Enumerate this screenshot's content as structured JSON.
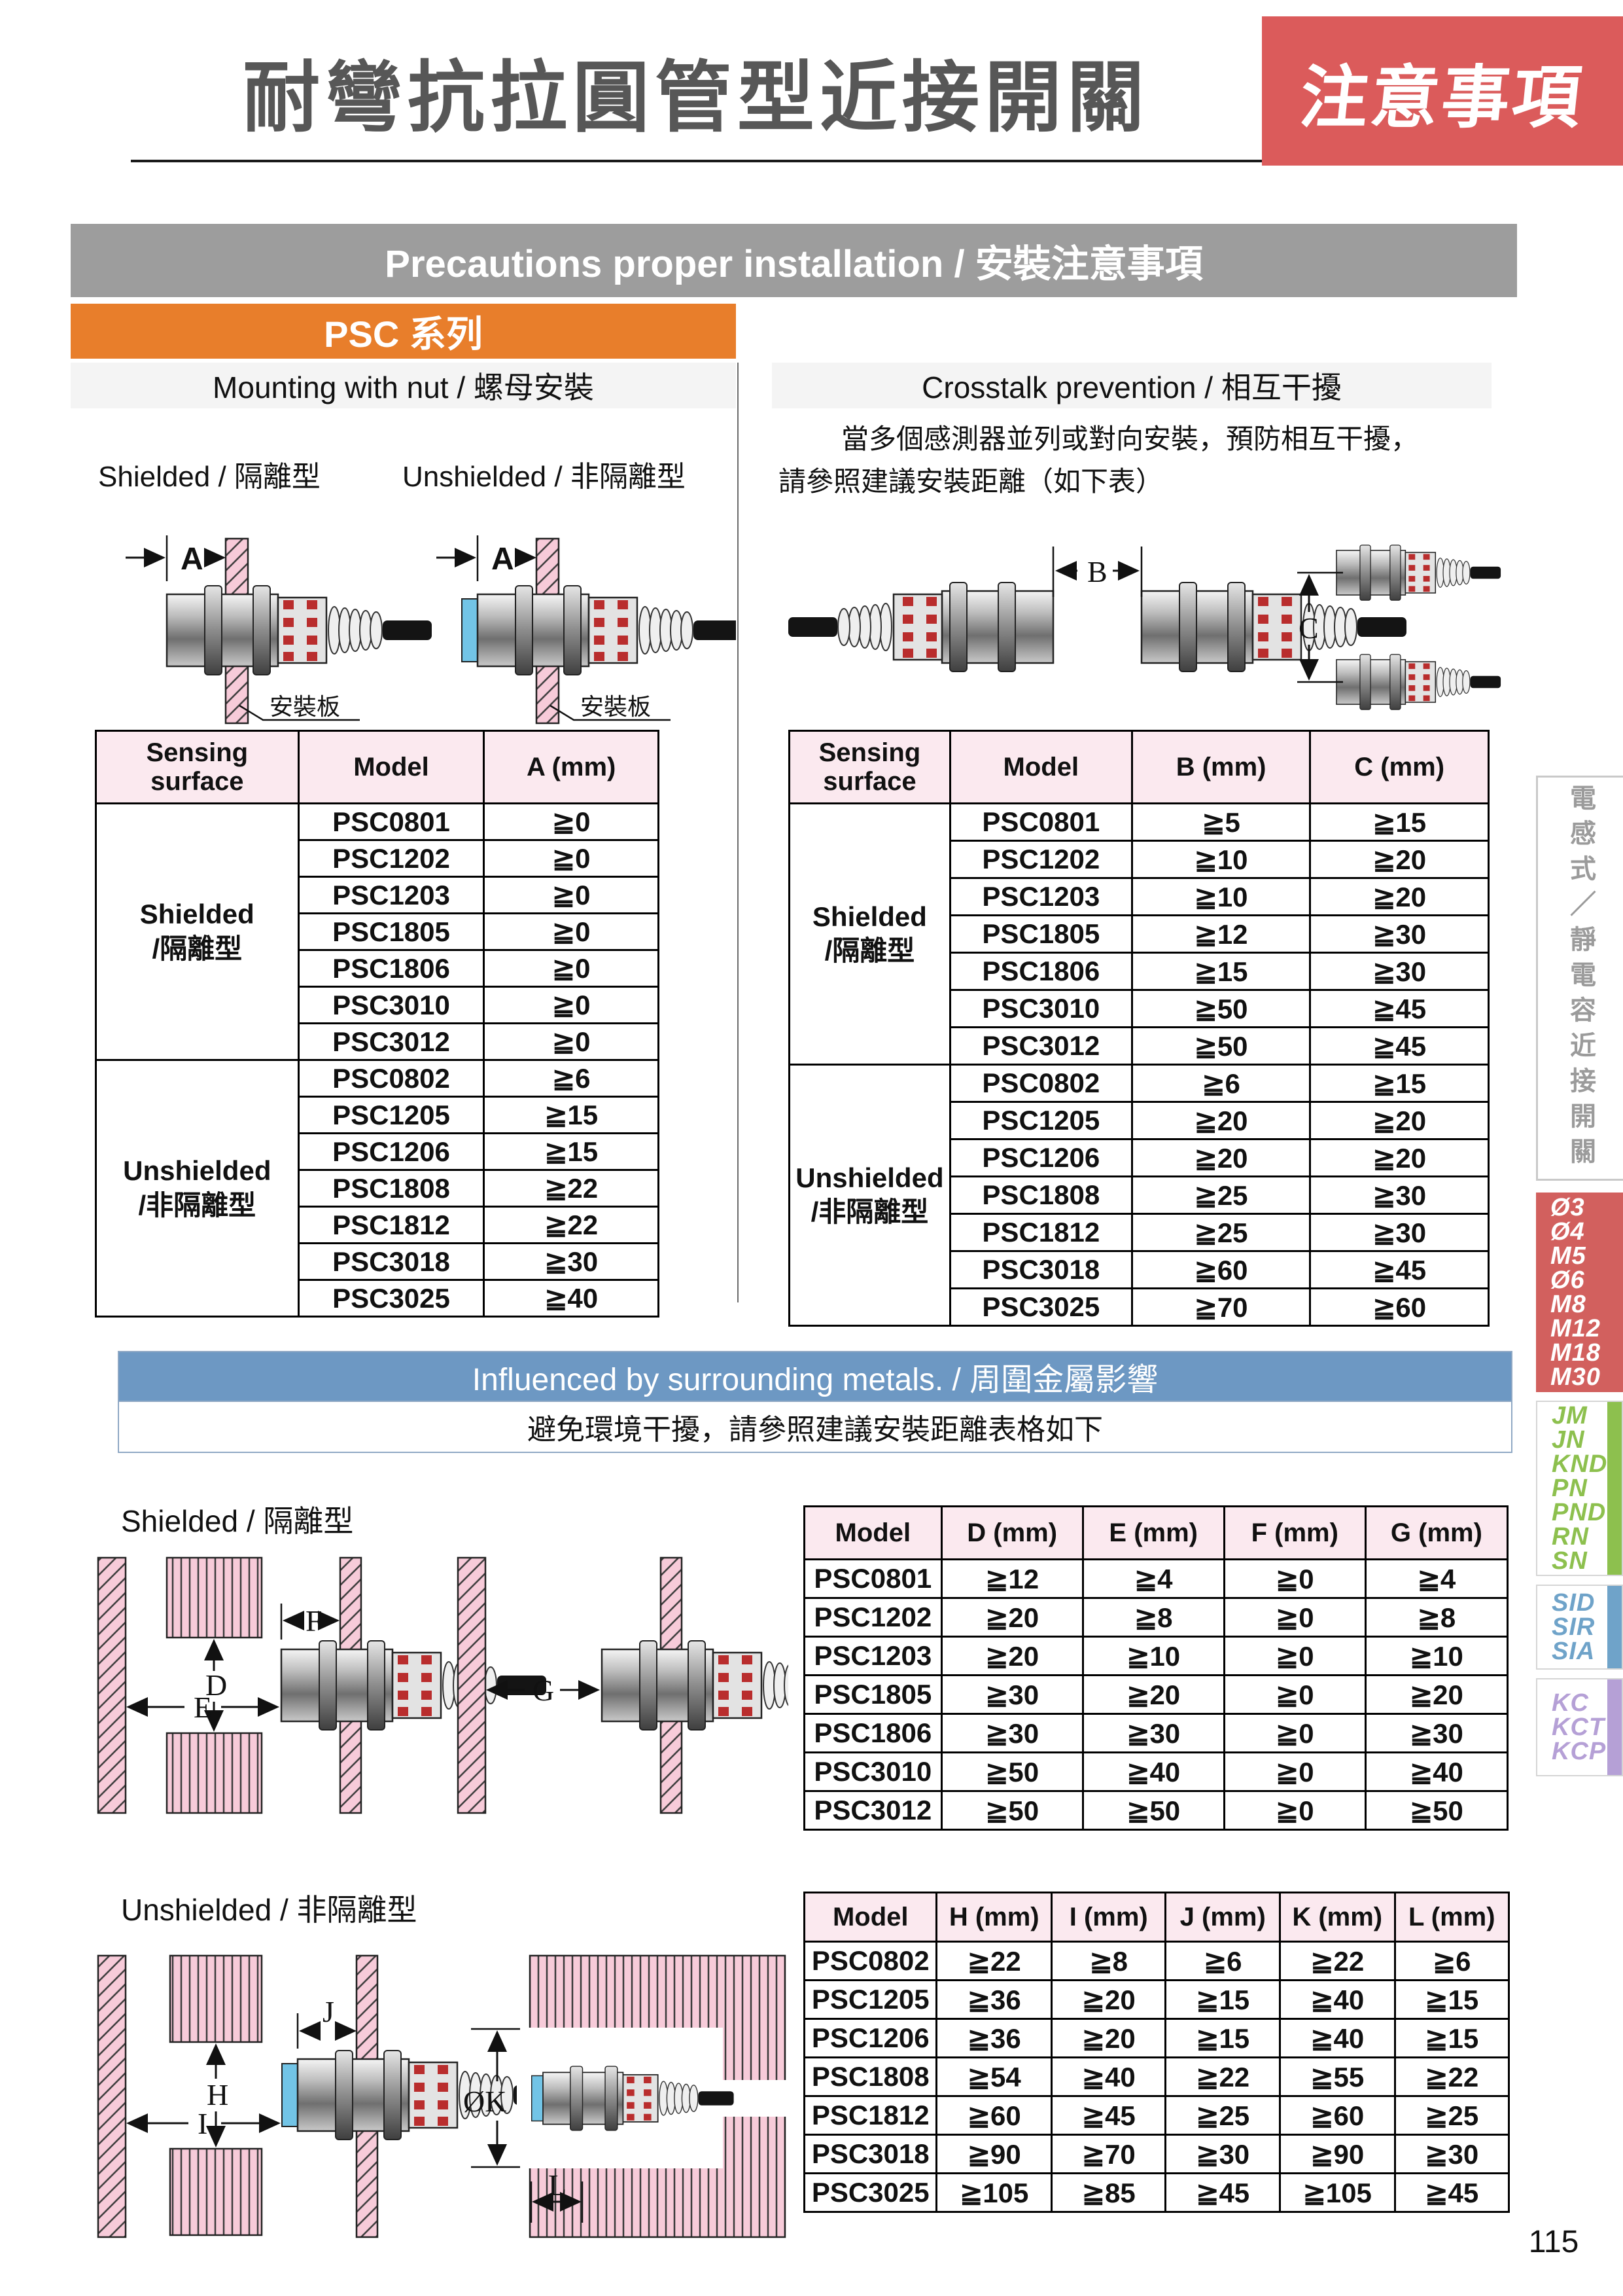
{
  "page": {
    "title": "耐彎抗拉圓管型近接開關",
    "corner_badge": "注意事項",
    "page_number": "115"
  },
  "banners": {
    "main": "Precautions proper installation / 安裝注意事項",
    "series_badge": "PSC 系列",
    "metals": "Influenced by surrounding metals. / 周圍金屬影響",
    "metals_note": "避免環境干擾，請參照建議安裝距離表格如下"
  },
  "sections": {
    "mounting_header": "Mounting with nut / 螺母安裝",
    "crosstalk_header": "Crosstalk prevention / 相互干擾",
    "mount_shielded_label": "Shielded / 隔離型",
    "mount_unshielded_label": "Unshielded / 非隔離型",
    "crosstalk_note_line1": "當多個感測器並列或對向安裝，預防相互干擾，",
    "crosstalk_note_line2": "請參照建議安裝距離（如下表）",
    "metals_shielded_label": "Shielded / 隔離型",
    "metals_unshielded_label": "Unshielded / 非隔離型"
  },
  "diagrams": {
    "plate_label": "安裝板",
    "dim_a": "A",
    "dim_b": "B",
    "dim_c": "C",
    "dim_d": "D",
    "dim_e": "E",
    "dim_f": "F",
    "dim_g": "G",
    "dim_h": "H",
    "dim_i": "I",
    "dim_j": "J",
    "dim_k": "ØK",
    "dim_l": "L"
  },
  "tables": {
    "mount_a": {
      "headers": [
        "Sensing\nsurface",
        "Model",
        "A (mm)"
      ],
      "groups": [
        {
          "label": "Shielded\n/隔離型",
          "rows": [
            [
              "PSC0801",
              "≧0"
            ],
            [
              "PSC1202",
              "≧0"
            ],
            [
              "PSC1203",
              "≧0"
            ],
            [
              "PSC1805",
              "≧0"
            ],
            [
              "PSC1806",
              "≧0"
            ],
            [
              "PSC3010",
              "≧0"
            ],
            [
              "PSC3012",
              "≧0"
            ]
          ]
        },
        {
          "label": "Unshielded\n/非隔離型",
          "rows": [
            [
              "PSC0802",
              "≧6"
            ],
            [
              "PSC1205",
              "≧15"
            ],
            [
              "PSC1206",
              "≧15"
            ],
            [
              "PSC1808",
              "≧22"
            ],
            [
              "PSC1812",
              "≧22"
            ],
            [
              "PSC3018",
              "≧30"
            ],
            [
              "PSC3025",
              "≧40"
            ]
          ]
        }
      ]
    },
    "cross_bc": {
      "headers": [
        "Sensing\nsurface",
        "Model",
        "B (mm)",
        "C (mm)"
      ],
      "groups": [
        {
          "label": "Shielded\n/隔離型",
          "rows": [
            [
              "PSC0801",
              "≧5",
              "≧15"
            ],
            [
              "PSC1202",
              "≧10",
              "≧20"
            ],
            [
              "PSC1203",
              "≧10",
              "≧20"
            ],
            [
              "PSC1805",
              "≧12",
              "≧30"
            ],
            [
              "PSC1806",
              "≧15",
              "≧30"
            ],
            [
              "PSC3010",
              "≧50",
              "≧45"
            ],
            [
              "PSC3012",
              "≧50",
              "≧45"
            ]
          ]
        },
        {
          "label": "Unshielded\n/非隔離型",
          "rows": [
            [
              "PSC0802",
              "≧6",
              "≧15"
            ],
            [
              "PSC1205",
              "≧20",
              "≧20"
            ],
            [
              "PSC1206",
              "≧20",
              "≧20"
            ],
            [
              "PSC1808",
              "≧25",
              "≧30"
            ],
            [
              "PSC1812",
              "≧25",
              "≧30"
            ],
            [
              "PSC3018",
              "≧60",
              "≧45"
            ],
            [
              "PSC3025",
              "≧70",
              "≧60"
            ]
          ]
        }
      ]
    },
    "metal_defg": {
      "headers": [
        "Model",
        "D (mm)",
        "E (mm)",
        "F (mm)",
        "G (mm)"
      ],
      "rows": [
        [
          "PSC0801",
          "≧12",
          "≧4",
          "≧0",
          "≧4"
        ],
        [
          "PSC1202",
          "≧20",
          "≧8",
          "≧0",
          "≧8"
        ],
        [
          "PSC1203",
          "≧20",
          "≧10",
          "≧0",
          "≧10"
        ],
        [
          "PSC1805",
          "≧30",
          "≧20",
          "≧0",
          "≧20"
        ],
        [
          "PSC1806",
          "≧30",
          "≧30",
          "≧0",
          "≧30"
        ],
        [
          "PSC3010",
          "≧50",
          "≧40",
          "≧0",
          "≧40"
        ],
        [
          "PSC3012",
          "≧50",
          "≧50",
          "≧0",
          "≧50"
        ]
      ]
    },
    "metal_hijkl": {
      "headers": [
        "Model",
        "H (mm)",
        "I (mm)",
        "J (mm)",
        "K (mm)",
        "L (mm)"
      ],
      "rows": [
        [
          "PSC0802",
          "≧22",
          "≧8",
          "≧6",
          "≧22",
          "≧6"
        ],
        [
          "PSC1205",
          "≧36",
          "≧20",
          "≧15",
          "≧40",
          "≧15"
        ],
        [
          "PSC1206",
          "≧36",
          "≧20",
          "≧15",
          "≧40",
          "≧15"
        ],
        [
          "PSC1808",
          "≧54",
          "≧40",
          "≧22",
          "≧55",
          "≧22"
        ],
        [
          "PSC1812",
          "≧60",
          "≧45",
          "≧25",
          "≧60",
          "≧25"
        ],
        [
          "PSC3018",
          "≧90",
          "≧70",
          "≧30",
          "≧90",
          "≧30"
        ],
        [
          "PSC3025",
          "≧105",
          "≧85",
          "≧45",
          "≧105",
          "≧45"
        ]
      ]
    }
  },
  "sidebar": {
    "vertical_title": "電感式／靜電容近接開關",
    "groups": [
      {
        "name": "sizes-red",
        "items": [
          "Ø3",
          "Ø4",
          "M5",
          "Ø6",
          "M8",
          "M12",
          "M18",
          "M30"
        ]
      },
      {
        "name": "series-green",
        "items": [
          "JM",
          "JN",
          "KND",
          "PN",
          "PND",
          "RN",
          "SN"
        ]
      },
      {
        "name": "series-blue",
        "items": [
          "SID",
          "SIR",
          "SIA"
        ]
      },
      {
        "name": "series-purple",
        "items": [
          "KC",
          "KCT",
          "KCP"
        ]
      }
    ]
  },
  "colors": {
    "corner_badge_red": "#DB5B5B",
    "orange": "#E87E2B",
    "gray_banner": "#9D9D9D",
    "blue_banner": "#6D98C3",
    "table_header_pink": "#FBE9EF",
    "sidebar_red": "#D2605E",
    "sidebar_green": "#8DC04E",
    "sidebar_blue": "#6FA3C9",
    "sidebar_purple": "#B5A0D6",
    "plate_pink": "#F7CBD9",
    "unshielded_face_blue": "#72C4E6"
  }
}
